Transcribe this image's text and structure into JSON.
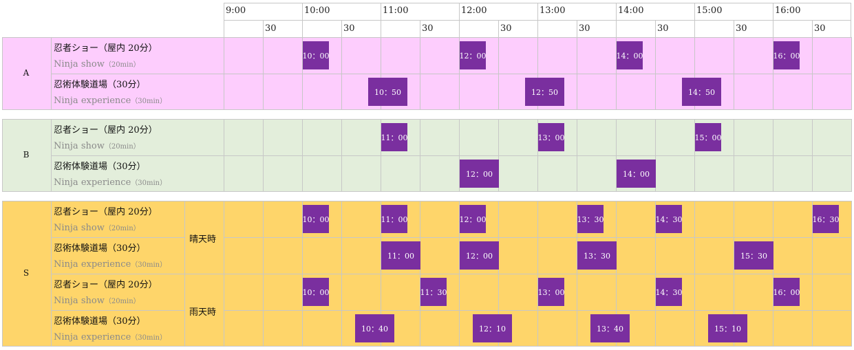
{
  "header": {
    "hours": [
      "9:00",
      "10:00",
      "11:00",
      "12:00",
      "13:00",
      "14:00",
      "15:00",
      "16:00"
    ],
    "half_label": "30"
  },
  "programs": {
    "show": {
      "jp": "忍者ショー（屋内 20分）",
      "en": "Ninja show",
      "en_unit": "（20min）"
    },
    "experience": {
      "jp": "忍術体験道場（30分）",
      "en": "Ninja experience",
      "en_unit": "（30min）"
    }
  },
  "zones": [
    {
      "name": "A",
      "color": "#fdcdfd",
      "rows": [
        {
          "program": "show",
          "slots": [
            "10：00",
            "12：00",
            "14：00",
            "16：00"
          ]
        },
        {
          "program": "experience",
          "slots": [
            "10：50",
            "12：50",
            "14：50"
          ]
        }
      ]
    },
    {
      "name": "B",
      "color": "#e3eedb",
      "rows": [
        {
          "program": "show",
          "slots": [
            "11：00",
            "13：00",
            "15：00"
          ]
        },
        {
          "program": "experience",
          "slots": [
            "12：00",
            "14：00"
          ]
        }
      ]
    },
    {
      "name": "S",
      "color": "#fed56a",
      "conditions": [
        "晴天時",
        "雨天時"
      ],
      "rows": [
        {
          "program": "show",
          "condition": "晴天時",
          "slots": [
            "10：00",
            "11：00",
            "12：00",
            "13：30",
            "14：30",
            "16：30"
          ]
        },
        {
          "program": "experience",
          "condition": "晴天時",
          "slots": [
            "11：00",
            "12：00",
            "13：30",
            "15：30"
          ]
        },
        {
          "program": "show",
          "condition": "雨天時",
          "slots": [
            "10：00",
            "11：30",
            "13：00",
            "14：30",
            "16：00"
          ]
        },
        {
          "program": "experience",
          "condition": "雨天時",
          "slots": [
            "10：40",
            "12：10",
            "13：40",
            "15：10"
          ]
        }
      ]
    }
  ],
  "colors": {
    "slot": "#7a2f9f",
    "grid": "#c7c7c7"
  }
}
